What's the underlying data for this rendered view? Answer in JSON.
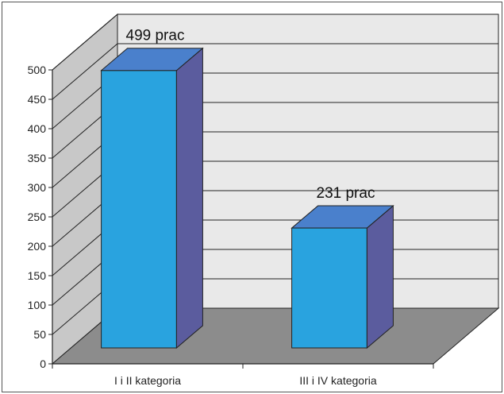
{
  "chart_data": {
    "type": "bar",
    "categories": [
      "I i II kategoria",
      "III i IV kategoria"
    ],
    "values": [
      499,
      231
    ],
    "data_labels": [
      "499 prac",
      "231 prac"
    ],
    "ylim": [
      0,
      500
    ],
    "yticks": [
      0,
      50,
      100,
      150,
      200,
      250,
      300,
      350,
      400,
      450,
      500
    ],
    "grid": true,
    "legend": "none",
    "style": "3d",
    "colors": {
      "bar_front": "#29A3DF",
      "bar_top": "#4A80CC",
      "bar_side": "#5B5C9E",
      "back_wall": "#E9E9E9",
      "side_wall": "#C8C8C8",
      "floor": "#8C8C8C",
      "outline": "#222222"
    }
  }
}
